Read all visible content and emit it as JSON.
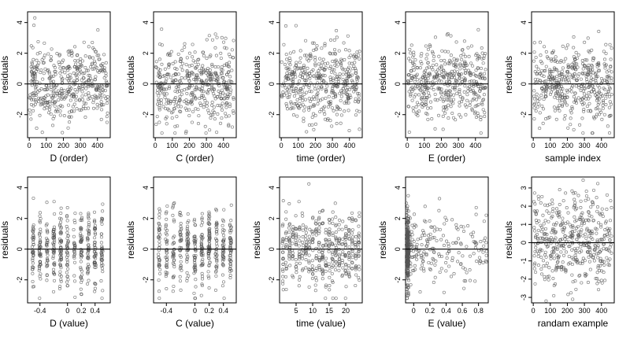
{
  "chart_data": [
    {
      "type": "scatter",
      "xlabel": "D (order)",
      "ylabel": "residuals",
      "xlim": [
        -10,
        475
      ],
      "ylim": [
        -3.5,
        4.7
      ],
      "xticks": [
        0,
        100,
        200,
        300,
        400
      ],
      "yticks": [
        -2,
        0,
        2,
        4
      ],
      "hline": 0,
      "points": {
        "kind": "uniform",
        "n": 450,
        "xmin": 1,
        "xmax": 460,
        "seed": 11
      }
    },
    {
      "type": "scatter",
      "xlabel": "C (order)",
      "ylabel": "residuals",
      "xlim": [
        -10,
        475
      ],
      "ylim": [
        -3.5,
        4.7
      ],
      "xticks": [
        0,
        100,
        200,
        300,
        400
      ],
      "yticks": [
        -2,
        0,
        2,
        4
      ],
      "hline": 0,
      "points": {
        "kind": "uniform",
        "n": 450,
        "xmin": 1,
        "xmax": 460,
        "seed": 23
      }
    },
    {
      "type": "scatter",
      "xlabel": "time (order)",
      "ylabel": "residuals",
      "xlim": [
        -10,
        475
      ],
      "ylim": [
        -3.5,
        4.7
      ],
      "xticks": [
        0,
        100,
        200,
        300,
        400
      ],
      "yticks": [
        -2,
        0,
        2,
        4
      ],
      "hline": 0,
      "points": {
        "kind": "uniform",
        "n": 450,
        "xmin": 1,
        "xmax": 460,
        "seed": 37
      }
    },
    {
      "type": "scatter",
      "xlabel": "E (order)",
      "ylabel": "residuals",
      "xlim": [
        -10,
        475
      ],
      "ylim": [
        -3.5,
        4.7
      ],
      "xticks": [
        0,
        100,
        200,
        300,
        400
      ],
      "yticks": [
        -2,
        0,
        2,
        4
      ],
      "hline": 0,
      "points": {
        "kind": "uniform",
        "n": 450,
        "xmin": 1,
        "xmax": 460,
        "seed": 41
      }
    },
    {
      "type": "scatter",
      "xlabel": "sample index",
      "ylabel": "residuals",
      "xlim": [
        -10,
        475
      ],
      "ylim": [
        -3.5,
        4.7
      ],
      "xticks": [
        0,
        100,
        200,
        300,
        400
      ],
      "yticks": [
        -2,
        0,
        2,
        4
      ],
      "hline": 0,
      "points": {
        "kind": "uniform",
        "n": 450,
        "xmin": 1,
        "xmax": 460,
        "seed": 53
      }
    },
    {
      "type": "scatter",
      "xlabel": "D (value)",
      "ylabel": "residuals",
      "xlim": [
        -0.58,
        0.62
      ],
      "ylim": [
        -3.5,
        4.7
      ],
      "xticks": [
        -0.4,
        0.0,
        0.2,
        0.4
      ],
      "yticks": [
        -2,
        0,
        2,
        4
      ],
      "hline": 0,
      "points": {
        "kind": "levels",
        "n": 450,
        "levels": [
          -0.5,
          -0.4,
          -0.3,
          -0.2,
          -0.1,
          0.0,
          0.1,
          0.2,
          0.3,
          0.4,
          0.5
        ],
        "jitter": 0.012,
        "seed": 61
      }
    },
    {
      "type": "scatter",
      "xlabel": "C (value)",
      "ylabel": "residuals",
      "xlim": [
        -0.58,
        0.58
      ],
      "ylim": [
        -3.5,
        4.7
      ],
      "xticks": [
        -0.4,
        0.0,
        0.2,
        0.4
      ],
      "yticks": [
        -2,
        0,
        2,
        4
      ],
      "hline": 0,
      "points": {
        "kind": "levels",
        "n": 450,
        "levels": [
          -0.5,
          -0.4,
          -0.3,
          -0.2,
          -0.1,
          0.0,
          0.1,
          0.2,
          0.3,
          0.4,
          0.5
        ],
        "jitter": 0.012,
        "seed": 71
      }
    },
    {
      "type": "scatter",
      "xlabel": "time (value)",
      "ylabel": "residuals",
      "xlim": [
        0,
        25
      ],
      "ylim": [
        -3.5,
        4.7
      ],
      "xticks": [
        5,
        10,
        15,
        20
      ],
      "yticks": [
        -2,
        0,
        2,
        4
      ],
      "hline": 0,
      "points": {
        "kind": "levels",
        "n": 450,
        "levels": [
          1,
          2,
          3,
          4,
          5,
          6,
          7,
          8,
          9,
          10,
          11,
          12,
          13,
          14,
          15,
          16,
          17,
          18,
          19,
          20,
          21,
          22,
          23,
          24
        ],
        "jitter": 0.15,
        "seed": 83
      }
    },
    {
      "type": "scatter",
      "xlabel": "E (value)",
      "ylabel": "residuals",
      "xlim": [
        -0.1,
        0.92
      ],
      "ylim": [
        -3.5,
        4.7
      ],
      "xticks": [
        0.0,
        0.2,
        0.4,
        0.6,
        0.8
      ],
      "yticks": [
        -2,
        0,
        2,
        4
      ],
      "hline": 0,
      "points": {
        "kind": "skewed",
        "n": 450,
        "xmin": -0.09,
        "xmax": 0.9,
        "seed": 97
      }
    },
    {
      "type": "scatter",
      "xlabel": "randam example",
      "ylabel": "residuals",
      "xlim": [
        -10,
        475
      ],
      "ylim": [
        -3.3,
        3.6
      ],
      "xticks": [
        0,
        100,
        200,
        300,
        400
      ],
      "yticks": [
        -3,
        -2,
        -1,
        0,
        1,
        2,
        3
      ],
      "hline": 0,
      "points": {
        "kind": "uniform",
        "n": 450,
        "xmin": 1,
        "xmax": 460,
        "seed": 109
      }
    }
  ]
}
